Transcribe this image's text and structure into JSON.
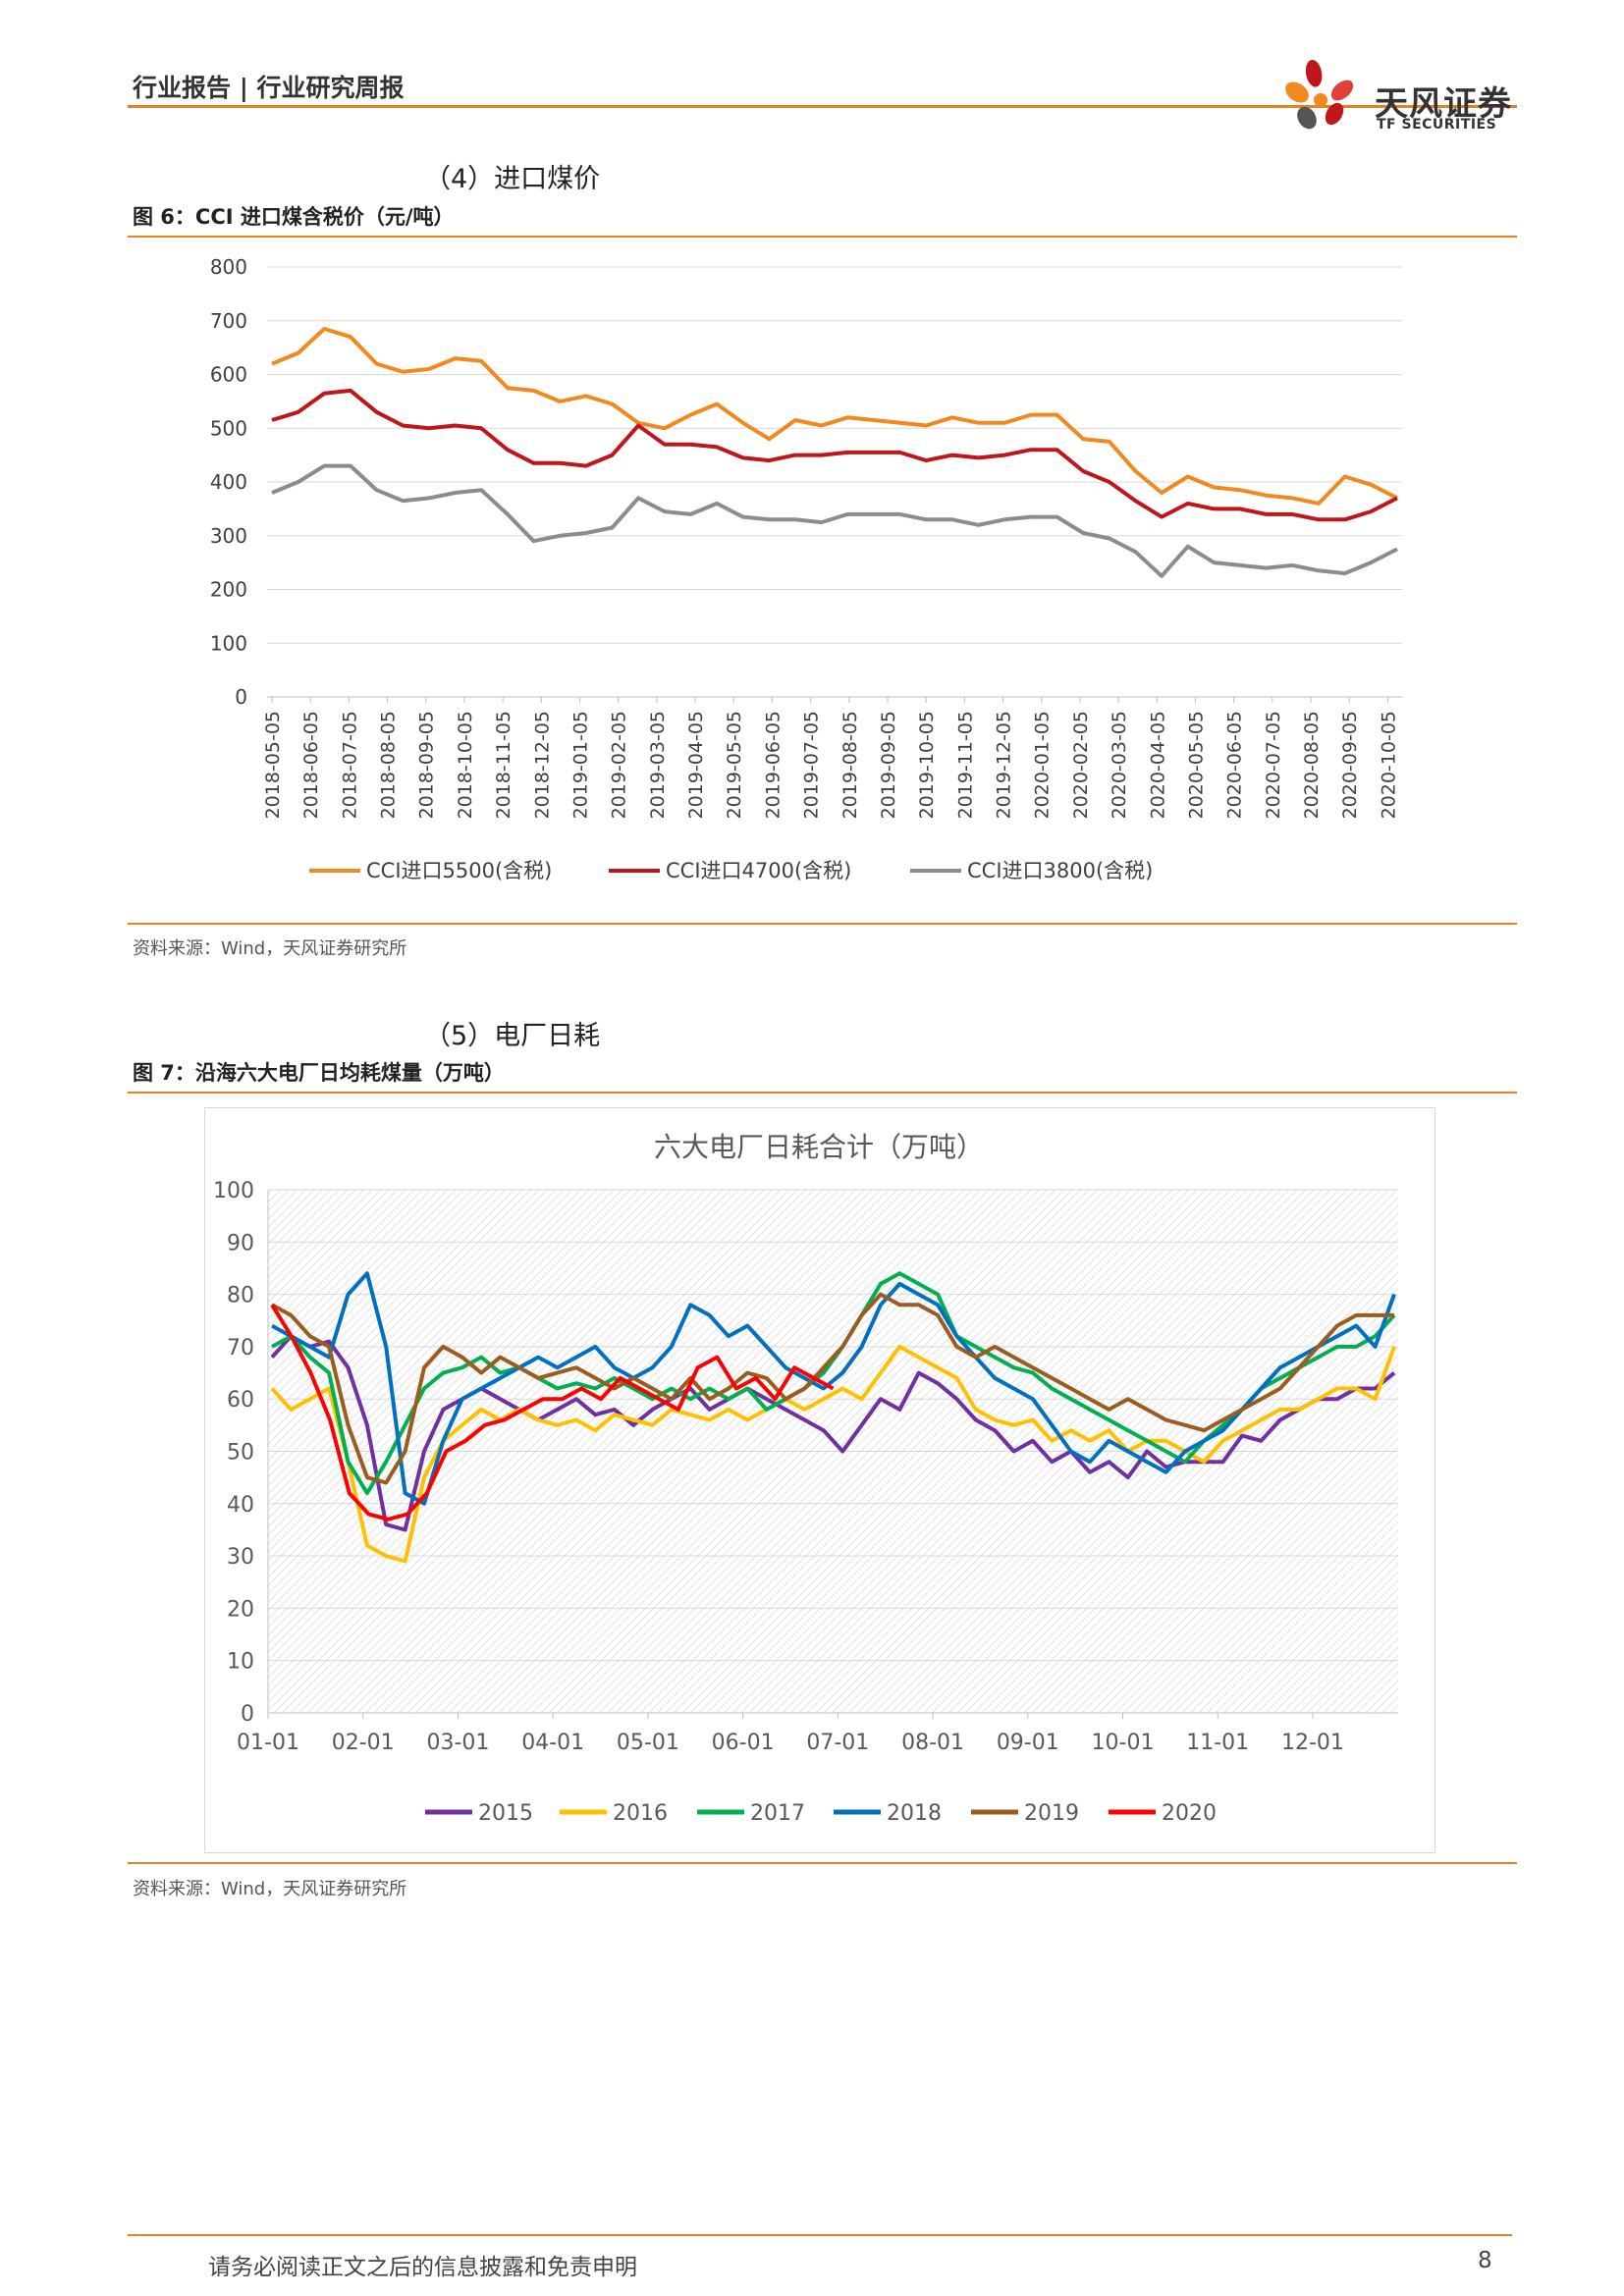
{
  "header": {
    "title": "行业报告 | 行业研究周报",
    "brand_name": "天风证券",
    "brand_sub": "TF SECURITIES"
  },
  "section4": {
    "title": "（4）进口煤价",
    "figure_title": "图 6：CCI 进口煤含税价（元/吨）",
    "source": "资料来源：Wind，天风证券研究所"
  },
  "section5": {
    "title": "（5）电厂日耗",
    "figure_title": "图 7：沿海六大电厂日均耗煤量（万吨）",
    "source": "资料来源：Wind，天风证券研究所"
  },
  "footer": {
    "disclaimer": "请务必阅读正文之后的信息披露和免责申明",
    "page": "8"
  },
  "chart_data": [
    {
      "type": "line",
      "title": "",
      "xlabel": "",
      "ylabel": "",
      "ylim": [
        0,
        800
      ],
      "yticks": [
        "800",
        "700",
        "600",
        "500",
        "400",
        "300",
        "200",
        "100",
        "0"
      ],
      "x_ticks": [
        "2018-05-05",
        "2018-06-05",
        "2018-07-05",
        "2018-08-05",
        "2018-09-05",
        "2018-10-05",
        "2018-11-05",
        "2018-12-05",
        "2019-01-05",
        "2019-02-05",
        "2019-03-05",
        "2019-04-05",
        "2019-05-05",
        "2019-06-05",
        "2019-07-05",
        "2019-08-05",
        "2019-09-05",
        "2019-10-05",
        "2019-11-05",
        "2019-12-05",
        "2020-01-05",
        "2020-02-05",
        "2020-03-05",
        "2020-04-05",
        "2020-05-05",
        "2020-06-05",
        "2020-07-05",
        "2020-08-05",
        "2020-09-05",
        "2020-10-05"
      ],
      "grid": true,
      "legend_position": "bottom",
      "series": [
        {
          "name": "CCI进口5500(含税)",
          "color": "#F0891E",
          "values": [
            620,
            640,
            685,
            670,
            620,
            605,
            610,
            630,
            625,
            575,
            570,
            550,
            560,
            545,
            510,
            500,
            525,
            545,
            510,
            480,
            515,
            505,
            520,
            515,
            510,
            505,
            520,
            510,
            510,
            525,
            525,
            480,
            475,
            420,
            380,
            410,
            390,
            385,
            375,
            370,
            360,
            410,
            395,
            370
          ]
        },
        {
          "name": "CCI进口4700(含税)",
          "color": "#C0161B",
          "values": [
            515,
            530,
            565,
            570,
            530,
            505,
            500,
            505,
            500,
            460,
            435,
            435,
            430,
            450,
            505,
            470,
            470,
            465,
            445,
            440,
            450,
            450,
            455,
            455,
            455,
            440,
            450,
            445,
            450,
            460,
            460,
            420,
            400,
            365,
            335,
            360,
            350,
            350,
            340,
            340,
            330,
            330,
            345,
            370
          ]
        },
        {
          "name": "CCI进口3800(含税)",
          "color": "#8C8C8C",
          "values": [
            380,
            400,
            430,
            430,
            385,
            365,
            370,
            380,
            385,
            340,
            290,
            300,
            305,
            315,
            370,
            345,
            340,
            360,
            335,
            330,
            330,
            325,
            340,
            340,
            340,
            330,
            330,
            320,
            330,
            335,
            335,
            305,
            295,
            270,
            225,
            280,
            250,
            245,
            240,
            245,
            235,
            230,
            250,
            275
          ]
        }
      ]
    },
    {
      "type": "line",
      "title": "六大电厂日耗合计（万吨）",
      "xlabel": "",
      "ylabel": "",
      "ylim": [
        0,
        100
      ],
      "yticks": [
        "100",
        "90",
        "80",
        "70",
        "60",
        "50",
        "40",
        "30",
        "20",
        "10",
        "0"
      ],
      "x_ticks": [
        "01-01",
        "02-01",
        "03-01",
        "04-01",
        "05-01",
        "06-01",
        "07-01",
        "08-01",
        "09-01",
        "10-01",
        "11-01",
        "12-01"
      ],
      "grid": true,
      "legend_position": "bottom",
      "series": [
        {
          "name": "2015",
          "color": "#7030A0",
          "values": [
            68,
            72,
            70,
            71,
            66,
            55,
            36,
            35,
            50,
            58,
            60,
            62,
            60,
            58,
            56,
            58,
            60,
            57,
            58,
            55,
            58,
            60,
            62,
            58,
            60,
            62,
            60,
            58,
            56,
            54,
            50,
            55,
            60,
            58,
            65,
            63,
            60,
            56,
            54,
            50,
            52,
            48,
            50,
            46,
            48,
            45,
            50,
            47,
            48,
            48,
            48,
            53,
            52,
            56,
            58,
            60,
            60,
            62,
            62,
            65
          ]
        },
        {
          "name": "2016",
          "color": "#FFC000",
          "values": [
            62,
            58,
            60,
            62,
            48,
            32,
            30,
            29,
            45,
            52,
            55,
            58,
            56,
            58,
            56,
            55,
            56,
            54,
            57,
            56,
            55,
            58,
            57,
            56,
            58,
            56,
            58,
            60,
            58,
            60,
            62,
            60,
            65,
            70,
            68,
            66,
            64,
            58,
            56,
            55,
            56,
            52,
            54,
            52,
            54,
            50,
            52,
            52,
            50,
            48,
            52,
            54,
            56,
            58,
            58,
            60,
            62,
            62,
            60,
            70
          ]
        },
        {
          "name": "2017",
          "color": "#00B050",
          "values": [
            70,
            72,
            68,
            65,
            48,
            42,
            48,
            55,
            62,
            65,
            66,
            68,
            65,
            66,
            64,
            62,
            63,
            62,
            64,
            62,
            60,
            62,
            60,
            62,
            60,
            62,
            58,
            60,
            62,
            65,
            70,
            76,
            82,
            84,
            82,
            80,
            72,
            70,
            68,
            66,
            65,
            62,
            60,
            58,
            56,
            54,
            52,
            50,
            48,
            52,
            55,
            58,
            62,
            64,
            66,
            68,
            70,
            70,
            72,
            76
          ]
        },
        {
          "name": "2018",
          "color": "#0070C0",
          "values": [
            74,
            72,
            70,
            68,
            80,
            84,
            70,
            42,
            40,
            52,
            60,
            62,
            64,
            66,
            68,
            66,
            68,
            70,
            66,
            64,
            66,
            70,
            78,
            76,
            72,
            74,
            70,
            66,
            64,
            62,
            65,
            70,
            78,
            82,
            80,
            78,
            72,
            68,
            64,
            62,
            60,
            55,
            50,
            48,
            52,
            50,
            48,
            46,
            50,
            52,
            54,
            58,
            62,
            66,
            68,
            70,
            72,
            74,
            70,
            80
          ]
        },
        {
          "name": "2019",
          "color": "#9C5B1F",
          "values": [
            78,
            76,
            72,
            70,
            55,
            45,
            44,
            50,
            66,
            70,
            68,
            65,
            68,
            66,
            64,
            65,
            66,
            64,
            62,
            64,
            62,
            60,
            64,
            60,
            62,
            65,
            64,
            60,
            62,
            66,
            70,
            76,
            80,
            78,
            78,
            76,
            70,
            68,
            70,
            68,
            66,
            64,
            62,
            60,
            58,
            60,
            58,
            56,
            55,
            54,
            56,
            58,
            60,
            62,
            66,
            70,
            74,
            76,
            76,
            76
          ]
        },
        {
          "name": "2020",
          "color": "#FF0000",
          "values": [
            78,
            72,
            65,
            56,
            42,
            38,
            37,
            38,
            42,
            50,
            52,
            55,
            56,
            58,
            60,
            60,
            62,
            60,
            64,
            62,
            60,
            58,
            66,
            68,
            62,
            64,
            60,
            66,
            64,
            62
          ]
        }
      ]
    }
  ]
}
